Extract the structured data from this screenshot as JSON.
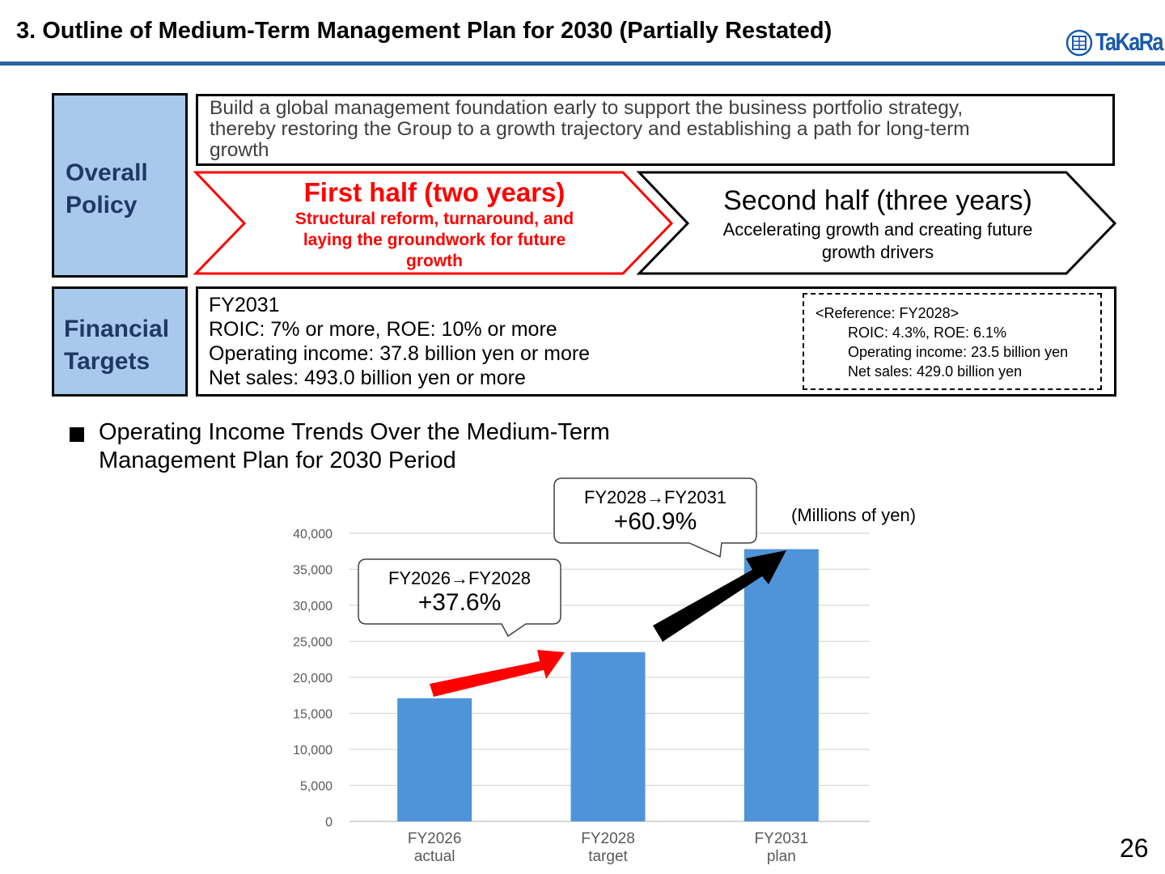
{
  "header": {
    "title": "3. Outline of Medium-Term Management Plan for 2030 (Partially Restated)",
    "logo_text": "TaKaRa",
    "rule_color": "#2e62a8"
  },
  "overall_policy": {
    "label_line1": "Overall",
    "label_line2": "Policy",
    "statement_line1": "Build a global management foundation early to support the business portfolio strategy,",
    "statement_line2": "thereby restoring the Group to a growth trajectory and establishing a path for long-term",
    "statement_line3": "growth",
    "first_half": {
      "title": "First half (two years)",
      "subtitle_line1": "Structural reform, turnaround, and",
      "subtitle_line2": "laying the groundwork for future",
      "subtitle_line3": "growth",
      "color": "#ff0000"
    },
    "second_half": {
      "title": "Second half (three years)",
      "subtitle_line1": "Accelerating growth and creating future",
      "subtitle_line2": "growth drivers"
    }
  },
  "financial_targets": {
    "label_line1": "Financial",
    "label_line2": "Targets",
    "lines": [
      "FY2031",
      "ROIC: 7% or more, ROE: 10% or more",
      "Operating income: 37.8 billion yen or more",
      "Net sales: 493.0 billion yen or more"
    ],
    "reference": {
      "heading": "<Reference: FY2028>",
      "lines": [
        "ROIC: 4.3%, ROE: 6.1%",
        "Operating income: 23.5 billion yen",
        "Net sales: 429.0 billion yen"
      ]
    }
  },
  "section_heading": {
    "line1": "Operating Income Trends Over the Medium-Term",
    "line2": "Management Plan for 2030 Period"
  },
  "chart_data": {
    "type": "bar",
    "categories": [
      [
        "FY2026",
        "actual"
      ],
      [
        "FY2028",
        "target"
      ],
      [
        "FY2031",
        "plan"
      ]
    ],
    "values": [
      17100,
      23500,
      37800
    ],
    "ylim": [
      0,
      40000
    ],
    "yticks": [
      0,
      5000,
      10000,
      15000,
      20000,
      25000,
      30000,
      35000,
      40000
    ],
    "ytick_labels": [
      "0",
      "5,000",
      "10,000",
      "15,000",
      "20,000",
      "25,000",
      "30,000",
      "35,000",
      "40,000"
    ],
    "unit_label": "(Millions of yen)",
    "grid": true,
    "bar_color": "#4f94d9",
    "annotations": [
      {
        "period": "FY2026→FY2028",
        "change": "+37.6%",
        "arrow_color": "#ff0000"
      },
      {
        "period": "FY2028→FY2031",
        "change": "+60.9%",
        "arrow_color": "#000000"
      }
    ]
  },
  "page_number": "26"
}
